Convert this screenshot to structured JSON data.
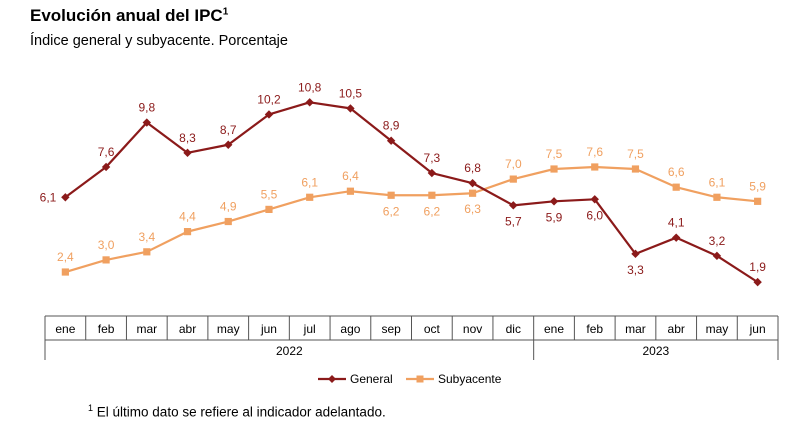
{
  "header": {
    "title": "Evolución anual del IPC",
    "title_sup": "1",
    "subtitle": "Índice general y subyacente. Porcentaje"
  },
  "footnote": {
    "sup": "1",
    "text": "El último dato se refiere al indicador adelantado."
  },
  "chart_data": {
    "type": "line",
    "categories": [
      "ene",
      "feb",
      "mar",
      "abr",
      "may",
      "jun",
      "jul",
      "ago",
      "sep",
      "oct",
      "nov",
      "dic",
      "ene",
      "feb",
      "mar",
      "abr",
      "may",
      "jun"
    ],
    "years": [
      {
        "label": "2022",
        "start": 0,
        "end": 11
      },
      {
        "label": "2023",
        "start": 12,
        "end": 17
      }
    ],
    "series": [
      {
        "name": "General",
        "color": "#8b1a1a",
        "marker": "diamond",
        "values": [
          6.1,
          7.6,
          9.8,
          8.3,
          8.7,
          10.2,
          10.8,
          10.5,
          8.9,
          7.3,
          6.8,
          5.7,
          5.9,
          6.0,
          3.3,
          4.1,
          3.2,
          1.9
        ],
        "labels": [
          "6,1",
          "7,6",
          "9,8",
          "8,3",
          "8,7",
          "10,2",
          "10,8",
          "10,5",
          "8,9",
          "7,3",
          "6,8",
          "5,7",
          "5,9",
          "6,0",
          "3,3",
          "4,1",
          "3,2",
          "1,9"
        ]
      },
      {
        "name": "Subyacente",
        "color": "#f0a060",
        "marker": "square",
        "values": [
          2.4,
          3.0,
          3.4,
          4.4,
          4.9,
          5.5,
          6.1,
          6.4,
          6.2,
          6.2,
          6.3,
          7.0,
          7.5,
          7.6,
          7.5,
          6.6,
          6.1,
          5.9
        ],
        "labels": [
          "2,4",
          "3,0",
          "3,4",
          "4,4",
          "4,9",
          "5,5",
          "6,1",
          "6,4",
          "6,2",
          "6,2",
          "6,3",
          "7,0",
          "7,5",
          "7,6",
          "7,5",
          "6,6",
          "6,1",
          "5,9"
        ]
      }
    ],
    "grid": false,
    "legend_position": "bottom"
  }
}
